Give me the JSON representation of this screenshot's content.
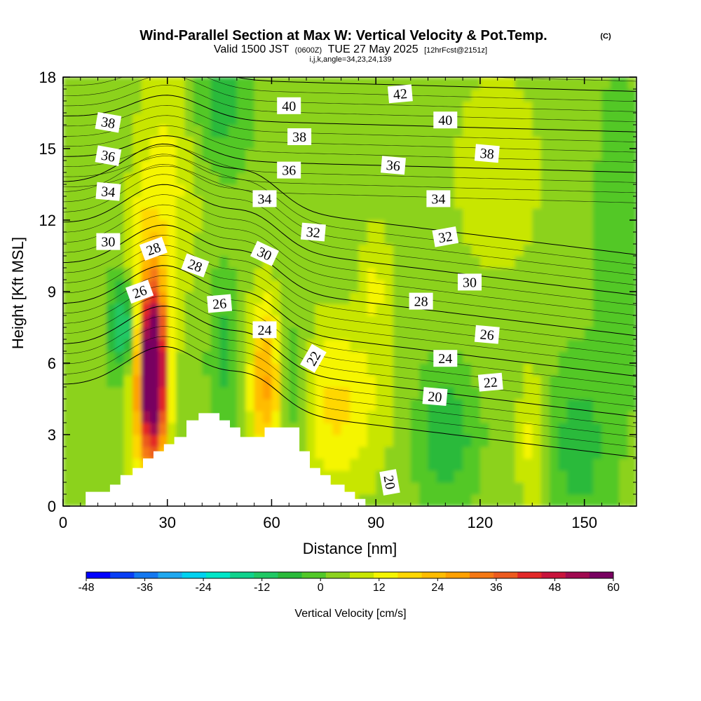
{
  "header": {
    "title": "Wind-Parallel Section at Max W: Vertical Velocity & Pot.Temp.",
    "copyright": "(C)",
    "valid_prefix": "Valid 1500 JST",
    "valid_utc": "(0600Z)",
    "valid_date": "TUE 27 May 2025",
    "forecast_info": "[12hrFcst@2151z]",
    "indices": "i,j,k,angle=34,23,24,139"
  },
  "colors": {
    "terrain": "#ffffff",
    "contour": "#000000",
    "colorbar": [
      "#0000ff",
      "#0a3ff5",
      "#1478f0",
      "#1ea8f0",
      "#00d2f0",
      "#00e6c8",
      "#10d28c",
      "#20c864",
      "#2aba3a",
      "#52c828",
      "#8cd21e",
      "#c8e600",
      "#f5f500",
      "#ffd700",
      "#ffbc00",
      "#ffa000",
      "#f57814",
      "#ec5a1e",
      "#e22828",
      "#c8143c",
      "#a00a50",
      "#780060"
    ]
  },
  "chart_data": {
    "type": "heatmap",
    "description_fields": {
      "field": "Vertical Velocity",
      "contour_field": "Pot.Temp."
    },
    "xlabel": "Distance [nm]",
    "ylabel": "Height [Kft MSL]",
    "xlim": [
      0,
      165
    ],
    "ylim": [
      0,
      18
    ],
    "x_ticks": [
      0,
      30,
      60,
      90,
      120,
      150
    ],
    "y_ticks": [
      0,
      3,
      6,
      9,
      12,
      15,
      18
    ],
    "colorbar": {
      "title": "Vertical Velocity [cm/s]",
      "min": -48,
      "max": 60,
      "step": 4.909,
      "tick_values": [
        -48,
        -36,
        -24,
        -12,
        0,
        12,
        24,
        36,
        48,
        60
      ],
      "tick_labels": [
        "-48",
        "-36",
        "-24",
        "-12",
        "0",
        "12",
        "24",
        "36",
        "48",
        "60"
      ]
    },
    "terrain_profile": [
      [
        0,
        0
      ],
      [
        6.5,
        0
      ],
      [
        6.5,
        0.6
      ],
      [
        13.5,
        0.6
      ],
      [
        13.5,
        0.9
      ],
      [
        16.5,
        0.9
      ],
      [
        16.5,
        1.3
      ],
      [
        20,
        1.3
      ],
      [
        20,
        1.6
      ],
      [
        23,
        1.6
      ],
      [
        23,
        2.0
      ],
      [
        26,
        2.0
      ],
      [
        26,
        2.3
      ],
      [
        29,
        2.3
      ],
      [
        29,
        2.6
      ],
      [
        32,
        2.6
      ],
      [
        32,
        2.9
      ],
      [
        35.5,
        2.9
      ],
      [
        35.5,
        3.6
      ],
      [
        39,
        3.6
      ],
      [
        39,
        3.9
      ],
      [
        45,
        3.9
      ],
      [
        45,
        3.6
      ],
      [
        48,
        3.6
      ],
      [
        48,
        3.3
      ],
      [
        51,
        3.3
      ],
      [
        51,
        2.9
      ],
      [
        58,
        2.9
      ],
      [
        58,
        3.3
      ],
      [
        68,
        3.3
      ],
      [
        68,
        2.3
      ],
      [
        71,
        2.3
      ],
      [
        71,
        1.6
      ],
      [
        74,
        1.6
      ],
      [
        74,
        1.3
      ],
      [
        77,
        1.3
      ],
      [
        77,
        0.9
      ],
      [
        81,
        0.9
      ],
      [
        81,
        0.6
      ],
      [
        84,
        0.6
      ],
      [
        84,
        0.3
      ],
      [
        87,
        0.3
      ],
      [
        87,
        0
      ],
      [
        165,
        0
      ]
    ],
    "w_blobs": [
      {
        "x": 26,
        "y": 5.5,
        "sx": 2.5,
        "sy": 2.3,
        "w": 58
      },
      {
        "x": 24,
        "y": 6.5,
        "sx": 4,
        "sy": 4,
        "w": 24
      },
      {
        "x": 58,
        "y": 5.3,
        "sx": 3,
        "sy": 2.5,
        "w": 22
      },
      {
        "x": 78,
        "y": 4.2,
        "sx": 10,
        "sy": 2.5,
        "w": 14
      },
      {
        "x": 135,
        "y": 2.8,
        "sx": 3,
        "sy": 2,
        "w": 10
      },
      {
        "x": 31,
        "y": 14,
        "sx": 6,
        "sy": 4,
        "w": 9
      },
      {
        "x": 18,
        "y": 7.5,
        "sx": 3,
        "sy": 1.5,
        "w": -24
      },
      {
        "x": 67,
        "y": 5,
        "sx": 3,
        "sy": 2,
        "w": -12
      },
      {
        "x": 90,
        "y": 9.5,
        "sx": 3,
        "sy": 2,
        "w": 8
      },
      {
        "x": 110,
        "y": 3,
        "sx": 6,
        "sy": 2,
        "w": -12
      },
      {
        "x": 148,
        "y": 2.5,
        "sx": 6,
        "sy": 2.5,
        "w": -10
      },
      {
        "x": 45,
        "y": 17,
        "sx": 6,
        "sy": 2,
        "w": -10
      },
      {
        "x": 46,
        "y": 6.5,
        "sx": 3,
        "sy": 2.5,
        "w": -8
      },
      {
        "x": 160,
        "y": 11,
        "sx": 5,
        "sy": 5,
        "w": -6
      },
      {
        "x": 125,
        "y": 14,
        "sx": 12,
        "sy": 4,
        "w": 5
      }
    ],
    "theta_levels": [
      20,
      22,
      24,
      26,
      28,
      30,
      32,
      34,
      36,
      38,
      40,
      42
    ],
    "contour_labels": [
      {
        "text": "38",
        "x": 13,
        "y": 16.1,
        "rot": 10
      },
      {
        "text": "36",
        "x": 13,
        "y": 14.7,
        "rot": 10
      },
      {
        "text": "34",
        "x": 13,
        "y": 13.2,
        "rot": 5
      },
      {
        "text": "30",
        "x": 13,
        "y": 11.1,
        "rot": 0
      },
      {
        "text": "28",
        "x": 26,
        "y": 10.8,
        "rot": -20
      },
      {
        "text": "26",
        "x": 22,
        "y": 9.0,
        "rot": -20
      },
      {
        "text": "28",
        "x": 38,
        "y": 10.1,
        "rot": 20
      },
      {
        "text": "30",
        "x": 58,
        "y": 10.6,
        "rot": 25
      },
      {
        "text": "26",
        "x": 45,
        "y": 8.5,
        "rot": -5
      },
      {
        "text": "24",
        "x": 58,
        "y": 7.4,
        "rot": 0
      },
      {
        "text": "22",
        "x": 72,
        "y": 6.2,
        "rot": -60
      },
      {
        "text": "40",
        "x": 65,
        "y": 16.8,
        "rot": 0
      },
      {
        "text": "38",
        "x": 68,
        "y": 15.5,
        "rot": 0
      },
      {
        "text": "36",
        "x": 65,
        "y": 14.1,
        "rot": 0
      },
      {
        "text": "34",
        "x": 58,
        "y": 12.9,
        "rot": 0
      },
      {
        "text": "32",
        "x": 72,
        "y": 11.5,
        "rot": 5
      },
      {
        "text": "42",
        "x": 97,
        "y": 17.3,
        "rot": -5
      },
      {
        "text": "40",
        "x": 110,
        "y": 16.2,
        "rot": 0
      },
      {
        "text": "36",
        "x": 95,
        "y": 14.3,
        "rot": 5
      },
      {
        "text": "38",
        "x": 122,
        "y": 14.8,
        "rot": 5
      },
      {
        "text": "34",
        "x": 108,
        "y": 12.9,
        "rot": 0
      },
      {
        "text": "32",
        "x": 110,
        "y": 11.3,
        "rot": -10
      },
      {
        "text": "30",
        "x": 117,
        "y": 9.4,
        "rot": 0
      },
      {
        "text": "28",
        "x": 103,
        "y": 8.6,
        "rot": 0
      },
      {
        "text": "26",
        "x": 122,
        "y": 7.2,
        "rot": 5
      },
      {
        "text": "24",
        "x": 110,
        "y": 6.2,
        "rot": 0
      },
      {
        "text": "22",
        "x": 123,
        "y": 5.2,
        "rot": -5
      },
      {
        "text": "20",
        "x": 107,
        "y": 4.6,
        "rot": 5
      },
      {
        "text": "20",
        "x": 94,
        "y": 1.0,
        "rot": 80
      }
    ],
    "grid": false,
    "legend": "bottom"
  }
}
